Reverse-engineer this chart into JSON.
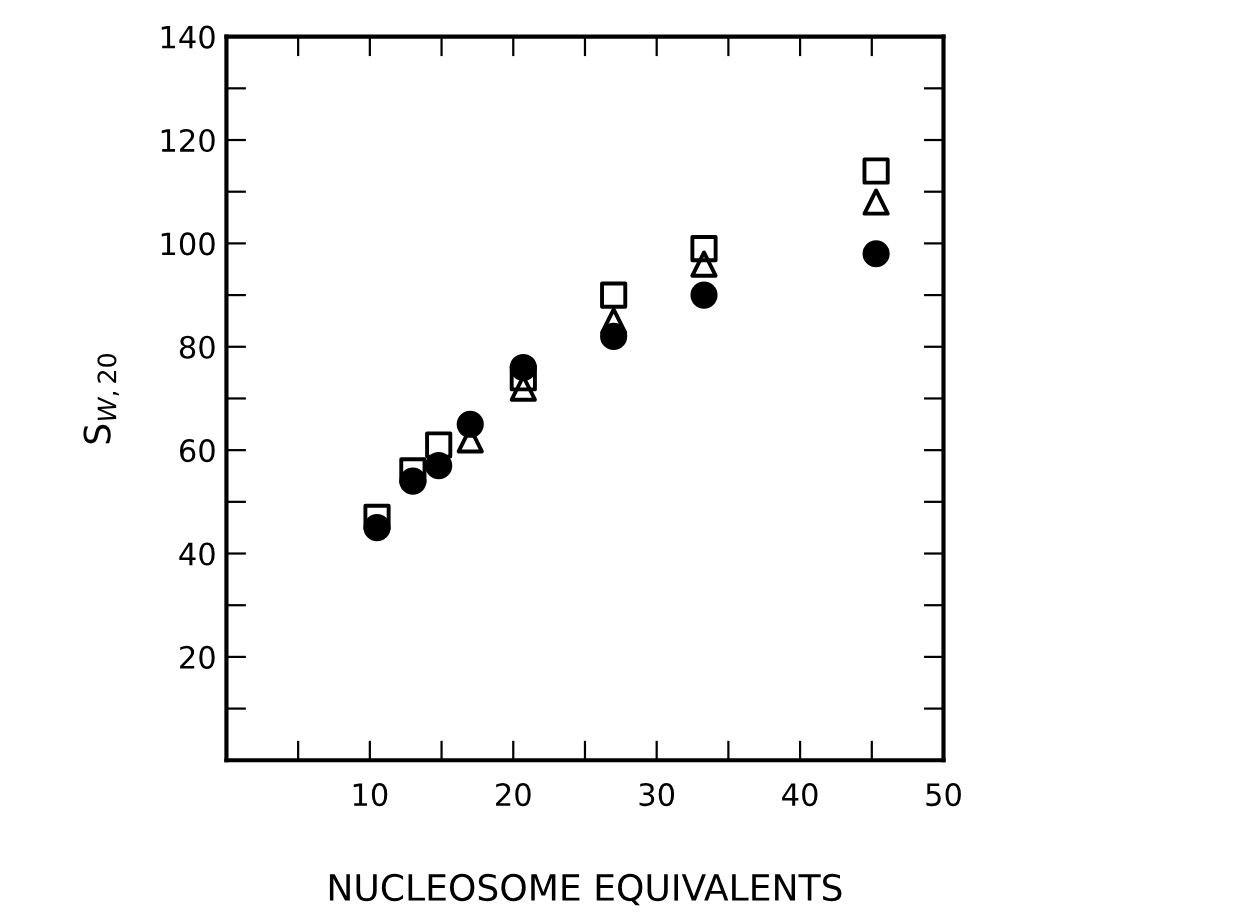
{
  "chart_data": {
    "type": "scatter",
    "xlabel": "NUCLEOSOME EQUIVALENTS",
    "ylabel": "S$_{W,20}$",
    "x": [
      10.5,
      13,
      14.8,
      17,
      20.7,
      27,
      33.3,
      45.3
    ],
    "series": [
      {
        "color": "#000000",
        "marker": "square",
        "values": [
          47,
          56,
          61,
          null,
          74,
          90,
          99,
          114
        ]
      },
      {
        "color": "#000000",
        "marker": "triangle",
        "values": [
          null,
          null,
          null,
          62,
          72,
          85,
          96,
          108
        ]
      },
      {
        "color": "#000000",
        "marker": "circle",
        "values": [
          45,
          54,
          57,
          65,
          76,
          82,
          90,
          98
        ]
      }
    ],
    "xlim": [
      0,
      50
    ],
    "ylim": [
      0,
      140
    ],
    "xticks": [
      {
        "value": 5,
        "label": null
      },
      10,
      {
        "value": 15,
        "label": null
      },
      20,
      {
        "value": 25,
        "label": null
      },
      30,
      {
        "value": 35,
        "label": null
      },
      40,
      {
        "value": 45,
        "label": null
      },
      50
    ],
    "yticks": [
      {
        "value": 10,
        "label": null
      },
      20,
      {
        "value": 30,
        "label": null
      },
      40,
      {
        "value": 50,
        "label": null
      },
      60,
      {
        "value": 70,
        "label": null
      },
      80,
      {
        "value": 90,
        "label": null
      },
      100,
      {
        "value": 110,
        "label": null
      },
      120,
      {
        "value": 130,
        "label": null
      },
      140
    ],
    "grid": false,
    "legend": false
  }
}
